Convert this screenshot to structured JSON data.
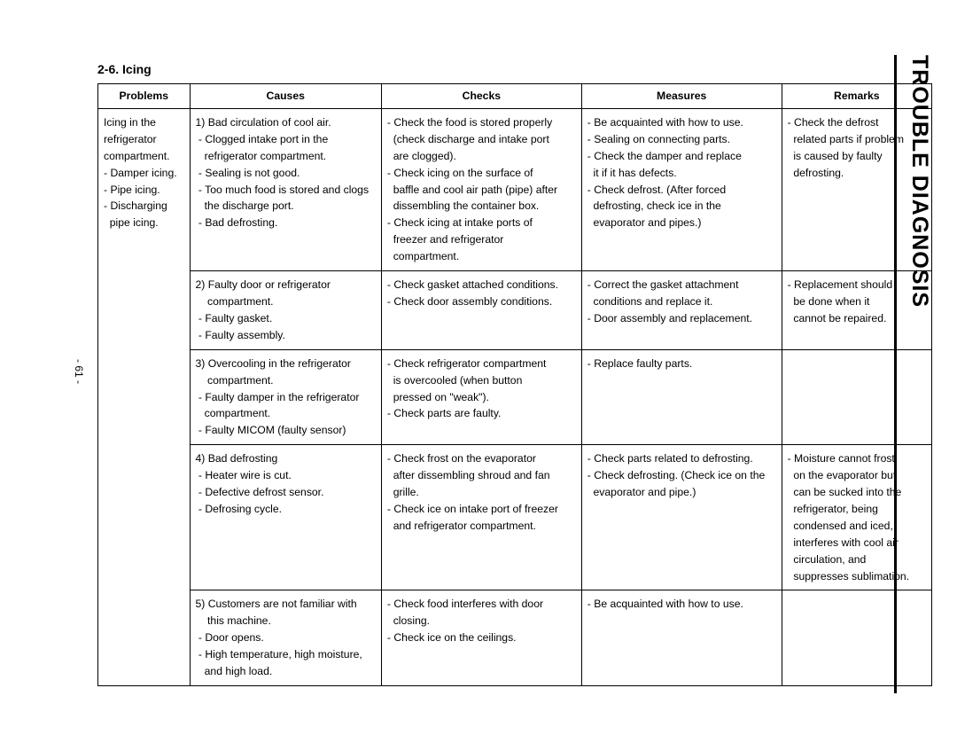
{
  "section_title": "2-6. Icing",
  "side_title": "TROUBLE DIAGNOSIS",
  "page_number": "- 61 -",
  "table": {
    "headers": {
      "problems": "Problems",
      "causes": "Causes",
      "checks": "Checks",
      "measures": "Measures",
      "remarks": "Remarks"
    },
    "problems_cell": [
      "Icing in the",
      "refrigerator",
      "compartment.",
      "- Damper icing.",
      "- Pipe icing.",
      "- Discharging",
      "  pipe icing."
    ],
    "rows": [
      {
        "causes": [
          "1) Bad circulation of cool air.",
          " - Clogged intake port in the",
          "   refrigerator compartment.",
          " - Sealing is not good.",
          " - Too much food is stored and clogs",
          "   the discharge port.",
          " - Bad defrosting."
        ],
        "checks": [
          "- Check the food is stored properly",
          "  (check discharge and intake port",
          "  are clogged).",
          "- Check icing on the surface of",
          "  baffle and cool air path (pipe) after",
          "  dissembling the container box.",
          "- Check icing at intake ports of",
          "  freezer and refrigerator",
          "  compartment."
        ],
        "measures": [
          "- Be acquainted with how to use.",
          "- Sealing on connecting parts.",
          "- Check the damper and replace",
          "  it if it has defects.",
          "- Check defrost. (After forced",
          "  defrosting, check ice in the",
          "  evaporator and pipes.)"
        ],
        "remarks": [
          "- Check the defrost",
          "  related parts if problem",
          "  is caused by faulty",
          "  defrosting."
        ]
      },
      {
        "causes": [
          "2) Faulty door or refrigerator",
          "    compartment.",
          " - Faulty gasket.",
          " - Faulty assembly."
        ],
        "checks": [
          "- Check gasket attached conditions.",
          "- Check door assembly conditions."
        ],
        "measures": [
          "- Correct the gasket attachment",
          "  conditions and replace it.",
          "- Door assembly and replacement."
        ],
        "remarks": [
          "- Replacement should",
          "  be done when it",
          "  cannot be repaired."
        ]
      },
      {
        "causes": [
          "3) Overcooling in the refrigerator",
          "    compartment.",
          " - Faulty damper in the refrigerator",
          "   compartment.",
          " - Faulty MICOM (faulty sensor)"
        ],
        "checks": [
          "- Check refrigerator compartment",
          "  is overcooled (when button",
          "  pressed on \"weak\").",
          "- Check parts are faulty."
        ],
        "measures": [
          "- Replace faulty parts."
        ],
        "remarks": []
      },
      {
        "causes": [
          "4) Bad defrosting",
          " - Heater wire is cut.",
          " - Defective defrost sensor.",
          " - Defrosing cycle."
        ],
        "checks": [
          "- Check frost on the evaporator",
          "  after dissembling shroud and fan",
          "  grille.",
          "- Check ice on intake port of freezer",
          "  and refrigerator compartment."
        ],
        "measures": [
          "- Check parts related to defrosting.",
          "- Check defrosting. (Check ice on the",
          "  evaporator and pipe.)"
        ],
        "remarks": [
          "- Moisture cannot frost",
          "  on the evaporator but",
          "  can be sucked into the",
          "  refrigerator, being",
          "  condensed and iced,",
          "  interferes with cool air",
          "  circulation, and",
          "  suppresses sublimation."
        ]
      },
      {
        "causes": [
          "5) Customers are  not familiar with",
          "    this machine.",
          " - Door opens.",
          " - High temperature, high moisture,",
          "   and high load."
        ],
        "checks": [
          "- Check food interferes with door",
          "  closing.",
          "- Check ice on the ceilings."
        ],
        "measures": [
          "- Be acquainted with how to use."
        ],
        "remarks": []
      }
    ]
  }
}
